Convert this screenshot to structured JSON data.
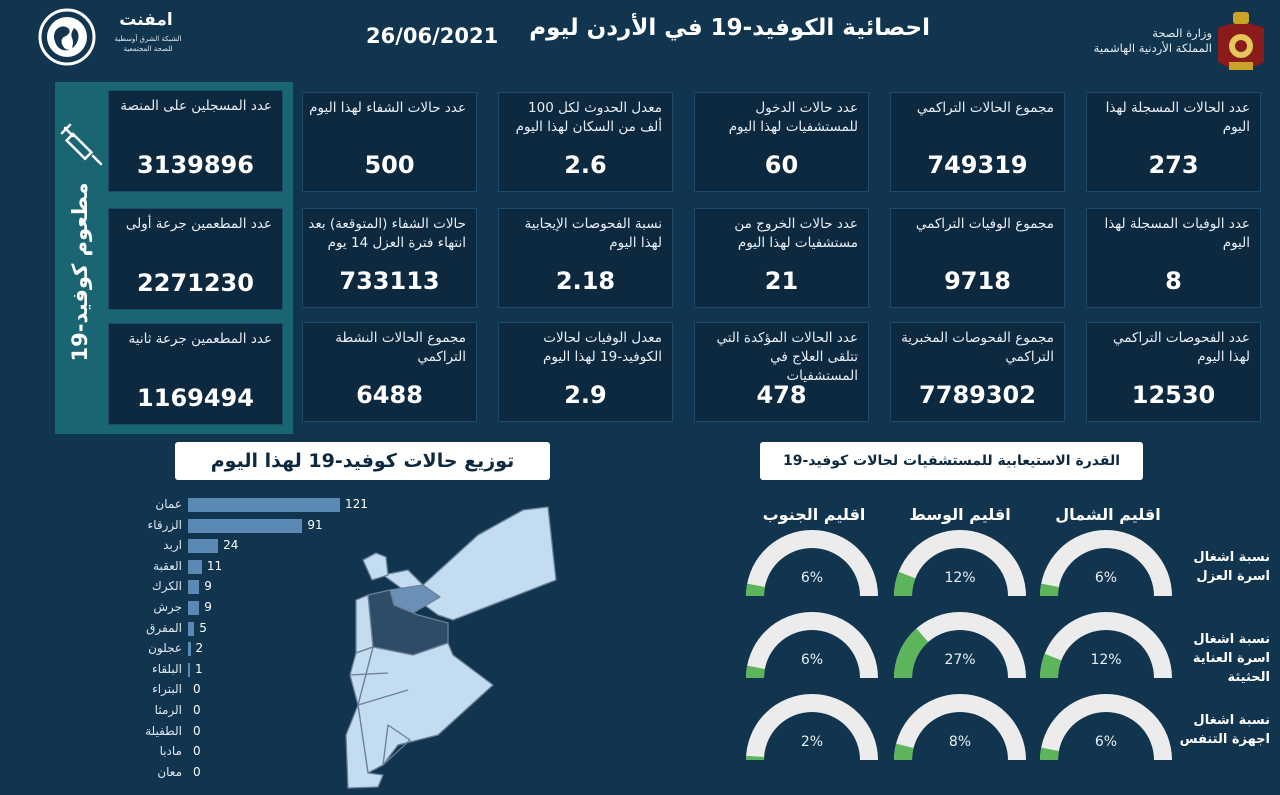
{
  "header": {
    "title": "احصائية الكوفيد-19 في الأردن ليوم",
    "date": "26/06/2021",
    "ministry_line1": "وزارة الصحة",
    "ministry_line2": "المملكة الأردنية الهاشمية",
    "partner_name": "امفنت",
    "partner_sub1": "الشبكة الشرق أوسطية",
    "partner_sub2": "للصحة المجتمعية"
  },
  "kpis": [
    {
      "label": "عدد الحالات المسجلة لهذا اليوم",
      "value": "273"
    },
    {
      "label": "مجموع الحالات التراكمي",
      "value": "749319"
    },
    {
      "label": "عدد حالات الدخول للمستشفيات لهذا اليوم",
      "value": "60"
    },
    {
      "label": "معدل الحدوث لكل 100 ألف من السكان لهذا اليوم",
      "value": "2.6"
    },
    {
      "label": "عدد حالات الشفاء لهذا اليوم",
      "value": "500"
    },
    {
      "label": "عدد الوفيات المسجلة لهذا اليوم",
      "value": "8"
    },
    {
      "label": "مجموع الوفيات التراكمي",
      "value": "9718"
    },
    {
      "label": "عدد حالات الخروج من مستشفيات لهذا اليوم",
      "value": "21"
    },
    {
      "label": "نسبة الفحوصات الإيجابية لهذا اليوم",
      "value": "2.18"
    },
    {
      "label": "حالات الشفاء (المتوقعة) بعد انتهاء فترة العزل 14 يوم",
      "value": "733113"
    },
    {
      "label": "عدد الفحوصات التراكمي لهذا اليوم",
      "value": "12530"
    },
    {
      "label": "مجموع الفحوصات المخبرية التراكمي",
      "value": "7789302"
    },
    {
      "label": "عدد الحالات المؤكدة التي تتلقى العلاج في المستشفيات",
      "value": "478"
    },
    {
      "label": "معدل الوفيات لحالات الكوفيد-19 لهذا اليوم",
      "value": "2.9"
    },
    {
      "label": "مجموع الحالات النشطة التراكمي",
      "value": "6488"
    }
  ],
  "vaccine": {
    "title": "مطعوم كوفيد-19",
    "registered_label": "عدد المسجلين على المنصة",
    "registered_value": "3139896",
    "dose1_label": "عدد المطعمين جرعة أولى",
    "dose1_value": "2271230",
    "dose2_label": "عدد المطعمين جرعة ثانية",
    "dose2_value": "1169494"
  },
  "distribution": {
    "title": "توزيع حالات كوفيد-19 لهذا اليوم"
  },
  "chart_data": {
    "type": "bar",
    "orientation": "horizontal",
    "categories": [
      "عمان",
      "الزرقاء",
      "اربد",
      "العقبة",
      "الكرك",
      "جرش",
      "المفرق",
      "عجلون",
      "البلقاء",
      "البتراء",
      "الرمثا",
      "الطفيلة",
      "مادبا",
      "معان"
    ],
    "values": [
      121,
      91,
      24,
      11,
      9,
      9,
      5,
      2,
      1,
      0,
      0,
      0,
      0,
      0
    ],
    "title": "توزيع حالات كوفيد-19 لهذا اليوم",
    "colors": {
      "bar": "#5a8ab3"
    }
  },
  "capacity": {
    "title": "القدرة الاستيعابية للمستشفيات لحالات كوفيد-19",
    "regions": [
      "اقليم الشمال",
      "اقليم الوسط",
      "اقليم الجنوب"
    ],
    "rows": [
      {
        "label": "نسبة اشغال اسرة العزل",
        "values": [
          6,
          12,
          6
        ]
      },
      {
        "label": "نسبة اشغال اسرة العناية الحثيثة",
        "values": [
          12,
          27,
          6
        ]
      },
      {
        "label": "نسبة اشغال اجهزة التنفس",
        "values": [
          6,
          8,
          2
        ]
      }
    ],
    "colors": {
      "track": "#ececec",
      "fill": "#5cb55a"
    }
  }
}
